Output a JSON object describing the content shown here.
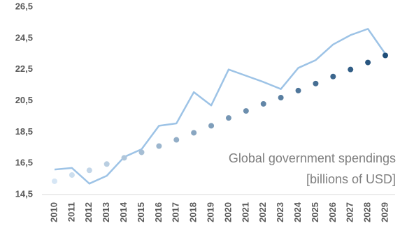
{
  "chart_data": {
    "type": "line-dots",
    "annotation": [
      "Global government spendings",
      "[billions of USD]"
    ],
    "categories": [
      "2010",
      "2011",
      "2012",
      "2013",
      "2014",
      "2015",
      "2016",
      "2017",
      "2018",
      "2019",
      "2020",
      "2021",
      "2022",
      "2023",
      "2024",
      "2025",
      "2026",
      "2027",
      "2028",
      "2029"
    ],
    "series": [
      {
        "style": "line",
        "color": "#9dc3e6",
        "values": [
          16.1,
          16.2,
          15.2,
          15.7,
          16.9,
          17.4,
          18.9,
          19.05,
          21.05,
          20.2,
          22.5,
          22.1,
          21.7,
          21.25,
          22.6,
          23.1,
          24.1,
          24.7,
          25.1,
          23.5
        ]
      },
      {
        "style": "dots",
        "color": [
          "#d6e6f5",
          "#1f4e79"
        ],
        "values": [
          15.35,
          15.75,
          16.05,
          16.45,
          16.85,
          17.2,
          17.6,
          18.0,
          18.45,
          18.9,
          19.4,
          19.85,
          20.3,
          20.7,
          21.15,
          21.6,
          22.05,
          22.5,
          22.95,
          23.4
        ]
      }
    ],
    "ylim": [
      14.5,
      26.5
    ],
    "yticks": [
      {
        "value": 14.5,
        "label": "14,5"
      },
      {
        "value": 16.5,
        "label": "16,5"
      },
      {
        "value": 18.5,
        "label": "18,5"
      },
      {
        "value": 20.5,
        "label": "20,5"
      },
      {
        "value": 22.5,
        "label": "22,5"
      },
      {
        "value": 24.5,
        "label": "24,5"
      },
      {
        "value": 26.5,
        "label": "26,5"
      }
    ],
    "grid": false
  }
}
